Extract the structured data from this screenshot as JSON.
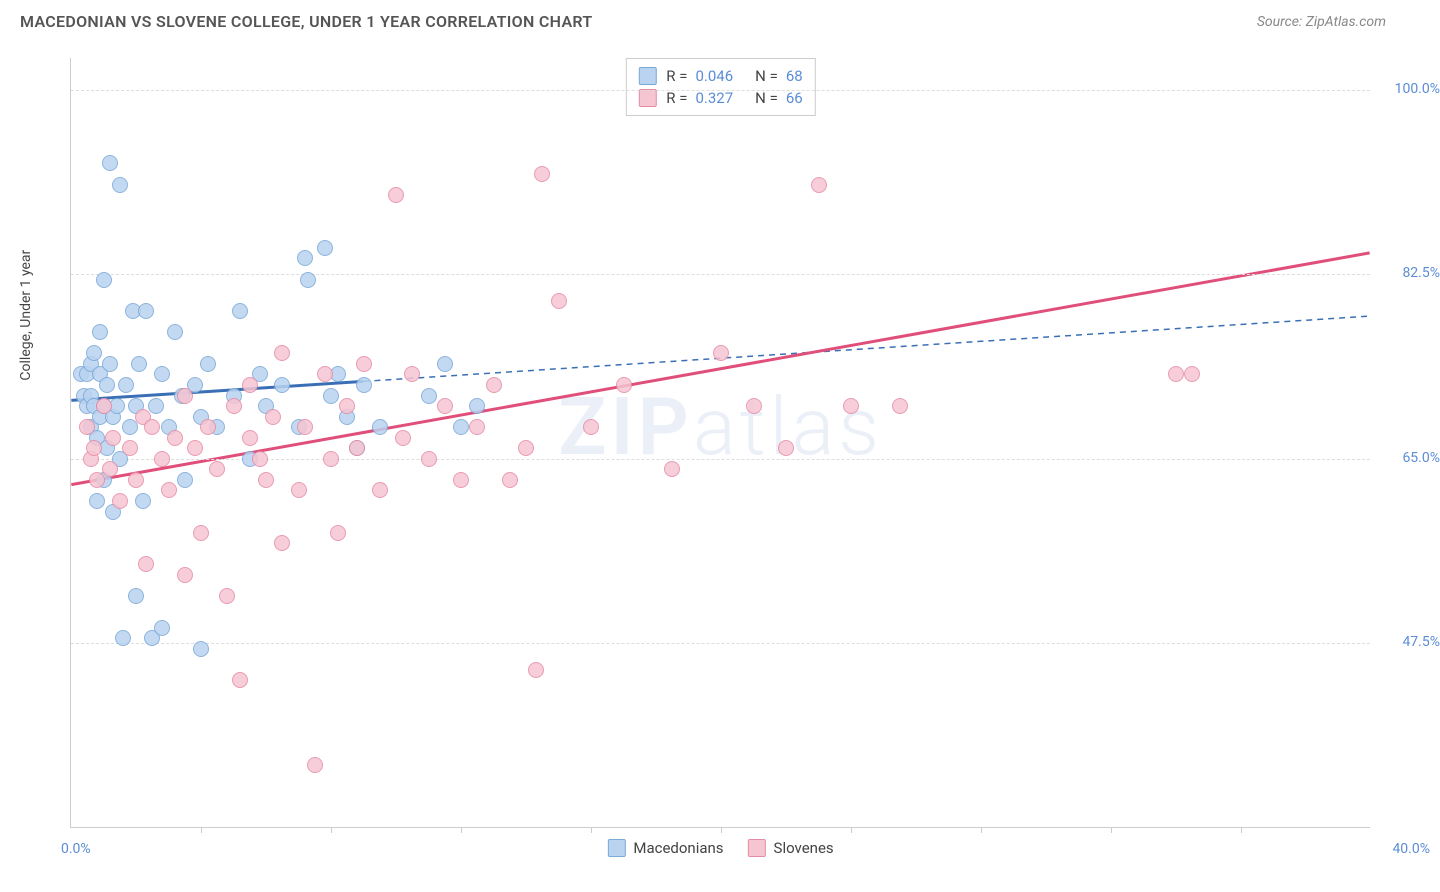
{
  "header": {
    "title": "MACEDONIAN VS SLOVENE COLLEGE, UNDER 1 YEAR CORRELATION CHART",
    "source": "Source: ZipAtlas.com"
  },
  "chart": {
    "type": "scatter",
    "ylabel": "College, Under 1 year",
    "xlim_min": 0.0,
    "xlim_max": 40.0,
    "xlabel_min": "0.0%",
    "xlabel_max": "40.0%",
    "ylim_min": 30.0,
    "ylim_max": 103.0,
    "ytick_values": [
      47.5,
      65.0,
      82.5,
      100.0
    ],
    "ytick_labels": [
      "47.5%",
      "65.0%",
      "82.5%",
      "100.0%"
    ],
    "xtick_count": 9,
    "background_color": "#ffffff",
    "grid_color": "#dddddd",
    "axis_color": "#cccccc",
    "watermark": "ZIPatlas",
    "series": [
      {
        "name": "Macedonians",
        "fill_color": "#b9d3f0",
        "stroke_color": "#7aa8d8",
        "trend_color": "#3a6fb5",
        "trend_solid_xmax": 9.0,
        "trend_y_at_xmin": 70.5,
        "trend_y_at_xmax": 78.5,
        "stats": {
          "R": "0.046",
          "N": "68"
        },
        "points": [
          [
            0.3,
            73
          ],
          [
            0.4,
            71
          ],
          [
            0.5,
            70
          ],
          [
            0.5,
            73
          ],
          [
            0.6,
            68
          ],
          [
            0.6,
            71
          ],
          [
            0.6,
            74
          ],
          [
            0.7,
            70
          ],
          [
            0.7,
            75
          ],
          [
            0.8,
            61
          ],
          [
            0.8,
            67
          ],
          [
            0.9,
            69
          ],
          [
            0.9,
            73
          ],
          [
            0.9,
            77
          ],
          [
            1.0,
            63
          ],
          [
            1.0,
            70
          ],
          [
            1.0,
            82
          ],
          [
            1.1,
            66
          ],
          [
            1.1,
            72
          ],
          [
            1.2,
            74
          ],
          [
            1.2,
            93
          ],
          [
            1.3,
            60
          ],
          [
            1.3,
            69
          ],
          [
            1.4,
            70
          ],
          [
            1.5,
            65
          ],
          [
            1.5,
            91
          ],
          [
            1.6,
            48
          ],
          [
            1.7,
            72
          ],
          [
            1.8,
            68
          ],
          [
            1.9,
            79
          ],
          [
            2.0,
            52
          ],
          [
            2.0,
            70
          ],
          [
            2.1,
            74
          ],
          [
            2.2,
            61
          ],
          [
            2.3,
            79
          ],
          [
            2.5,
            48
          ],
          [
            2.6,
            70
          ],
          [
            2.8,
            73
          ],
          [
            2.8,
            49
          ],
          [
            3.0,
            68
          ],
          [
            3.2,
            77
          ],
          [
            3.4,
            71
          ],
          [
            3.5,
            63
          ],
          [
            3.8,
            72
          ],
          [
            4.0,
            47
          ],
          [
            4.0,
            69
          ],
          [
            4.2,
            74
          ],
          [
            4.5,
            68
          ],
          [
            5.0,
            71
          ],
          [
            5.2,
            79
          ],
          [
            5.5,
            65
          ],
          [
            5.8,
            73
          ],
          [
            6.0,
            70
          ],
          [
            6.5,
            72
          ],
          [
            7.0,
            68
          ],
          [
            7.2,
            84
          ],
          [
            7.3,
            82
          ],
          [
            7.8,
            85
          ],
          [
            8.0,
            71
          ],
          [
            8.2,
            73
          ],
          [
            8.5,
            69
          ],
          [
            8.8,
            66
          ],
          [
            9.0,
            72
          ],
          [
            9.5,
            68
          ],
          [
            11.0,
            71
          ],
          [
            11.5,
            74
          ],
          [
            12.0,
            68
          ],
          [
            12.5,
            70
          ]
        ]
      },
      {
        "name": "Slovenes",
        "fill_color": "#f5c5d2",
        "stroke_color": "#e68ba5",
        "trend_color": "#e04f7a",
        "trend_solid_xmax": 40.0,
        "trend_y_at_xmin": 62.5,
        "trend_y_at_xmax": 84.5,
        "stats": {
          "R": "0.327",
          "N": "66"
        },
        "points": [
          [
            0.5,
            68
          ],
          [
            0.6,
            65
          ],
          [
            0.7,
            66
          ],
          [
            0.8,
            63
          ],
          [
            1.0,
            70
          ],
          [
            1.2,
            64
          ],
          [
            1.3,
            67
          ],
          [
            1.5,
            61
          ],
          [
            1.8,
            66
          ],
          [
            2.0,
            63
          ],
          [
            2.2,
            69
          ],
          [
            2.3,
            55
          ],
          [
            2.5,
            68
          ],
          [
            2.8,
            65
          ],
          [
            3.0,
            62
          ],
          [
            3.2,
            67
          ],
          [
            3.5,
            54
          ],
          [
            3.5,
            71
          ],
          [
            3.8,
            66
          ],
          [
            4.0,
            58
          ],
          [
            4.2,
            68
          ],
          [
            4.5,
            64
          ],
          [
            4.8,
            52
          ],
          [
            5.0,
            70
          ],
          [
            5.2,
            44
          ],
          [
            5.5,
            67
          ],
          [
            5.5,
            72
          ],
          [
            5.8,
            65
          ],
          [
            6.0,
            63
          ],
          [
            6.2,
            69
          ],
          [
            6.5,
            57
          ],
          [
            6.5,
            75
          ],
          [
            7.0,
            62
          ],
          [
            7.2,
            68
          ],
          [
            7.5,
            36
          ],
          [
            7.8,
            73
          ],
          [
            8.0,
            65
          ],
          [
            8.2,
            58
          ],
          [
            8.5,
            70
          ],
          [
            8.8,
            66
          ],
          [
            9.0,
            74
          ],
          [
            9.5,
            62
          ],
          [
            10.0,
            90
          ],
          [
            10.2,
            67
          ],
          [
            10.5,
            73
          ],
          [
            11.0,
            65
          ],
          [
            11.5,
            70
          ],
          [
            12.0,
            63
          ],
          [
            12.5,
            68
          ],
          [
            13.0,
            72
          ],
          [
            13.5,
            63
          ],
          [
            14.0,
            66
          ],
          [
            14.3,
            45
          ],
          [
            14.5,
            92
          ],
          [
            15.0,
            80
          ],
          [
            16.0,
            68
          ],
          [
            17.0,
            72
          ],
          [
            18.5,
            64
          ],
          [
            20.0,
            75
          ],
          [
            21.0,
            70
          ],
          [
            22.0,
            66
          ],
          [
            23.0,
            91
          ],
          [
            24.0,
            70
          ],
          [
            25.5,
            70
          ],
          [
            34.5,
            73
          ],
          [
            34.0,
            73
          ]
        ]
      }
    ],
    "legend_bottom": [
      "Macedonians",
      "Slovenes"
    ]
  }
}
